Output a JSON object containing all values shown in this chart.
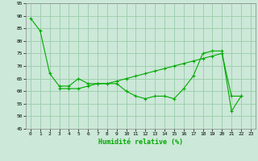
{
  "xlabel": "Humidité relative (%)",
  "background_color": "#cce8d8",
  "grid_color": "#99ccaa",
  "line_color": "#00aa00",
  "xlim": [
    -0.5,
    23.5
  ],
  "ylim": [
    45,
    95
  ],
  "yticks": [
    45,
    50,
    55,
    60,
    65,
    70,
    75,
    80,
    85,
    90,
    95
  ],
  "xticks": [
    0,
    1,
    2,
    3,
    4,
    5,
    6,
    7,
    8,
    9,
    10,
    11,
    12,
    13,
    14,
    15,
    16,
    17,
    18,
    19,
    20,
    21,
    22,
    23
  ],
  "series1_x": [
    0,
    1,
    2,
    3,
    4,
    5,
    6,
    7,
    8,
    9,
    10,
    11,
    12,
    13,
    14,
    15,
    16,
    17,
    18,
    19,
    20,
    21,
    22
  ],
  "series1_y": [
    89,
    84,
    67,
    62,
    62,
    65,
    63,
    63,
    63,
    63,
    60,
    58,
    57,
    58,
    58,
    57,
    61,
    66,
    75,
    76,
    76,
    52,
    58
  ],
  "series2_x": [
    3,
    4,
    5,
    6,
    7,
    8,
    9,
    10,
    11,
    12,
    13,
    14,
    15,
    16,
    17,
    18,
    19,
    20,
    21,
    22
  ],
  "series2_y": [
    61,
    61,
    61,
    62,
    63,
    63,
    64,
    65,
    66,
    67,
    68,
    69,
    70,
    71,
    72,
    73,
    74,
    75,
    58,
    58
  ]
}
